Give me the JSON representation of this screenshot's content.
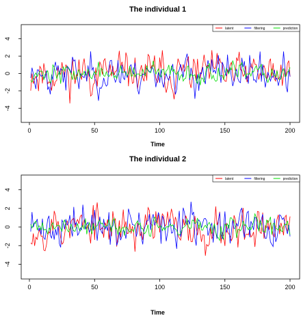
{
  "chart_data": [
    {
      "type": "line",
      "title": "The individual 1",
      "xlabel": "Time",
      "ylabel": "",
      "xlim": [
        0,
        200
      ],
      "ylim": [
        -5,
        5
      ],
      "xticks": [
        "0",
        "50",
        "100",
        "150",
        "200"
      ],
      "yticks": [
        "4",
        "2",
        "0",
        "-2",
        "-4"
      ],
      "legend_position": "top-right",
      "series": [
        {
          "name": "latent",
          "color": "#ff0000",
          "amp": 1.1,
          "seed": 11
        },
        {
          "name": "filtering",
          "color": "#0000ff",
          "amp": 1.0,
          "seed": 23
        },
        {
          "name": "prediction",
          "color": "#00dd00",
          "amp": 0.5,
          "seed": 37
        }
      ],
      "x_start": 1,
      "x_end": 200
    },
    {
      "type": "line",
      "title": "The individual 2",
      "xlabel": "Time",
      "ylabel": "",
      "xlim": [
        0,
        200
      ],
      "ylim": [
        -5,
        5
      ],
      "xticks": [
        "0",
        "50",
        "100",
        "150",
        "200"
      ],
      "yticks": [
        "4",
        "2",
        "0",
        "-2",
        "-4"
      ],
      "legend_position": "top-right",
      "series": [
        {
          "name": "latent",
          "color": "#ff0000",
          "amp": 1.1,
          "seed": 53
        },
        {
          "name": "filtering",
          "color": "#0000ff",
          "amp": 1.0,
          "seed": 71
        },
        {
          "name": "prediction",
          "color": "#00dd00",
          "amp": 0.5,
          "seed": 89
        }
      ],
      "x_start": 1,
      "x_end": 200
    }
  ]
}
